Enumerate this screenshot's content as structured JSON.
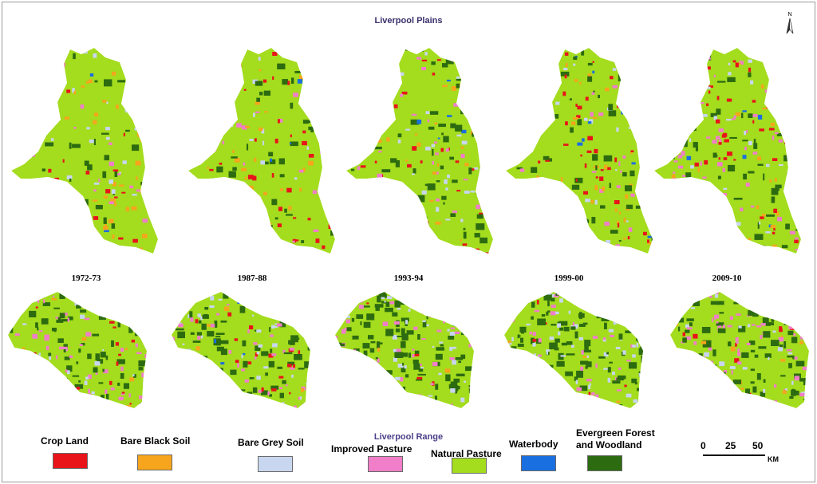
{
  "title": "Liverpool Plains",
  "north_label": "N",
  "years": [
    "1972-73",
    "1987-88",
    "1993-94",
    "1999-00",
    "2009-10"
  ],
  "range_title": "Liverpool Range",
  "legend": [
    {
      "label": "Crop Land",
      "color": "#e8141a"
    },
    {
      "label": "Bare Black Soil",
      "color": "#f6a51c"
    },
    {
      "label": "Bare Grey Soil",
      "color": "#c8d6f0"
    },
    {
      "label": "Improved Pasture",
      "color": "#f07ec8"
    },
    {
      "label": "Natural Pasture",
      "color": "#a4dc1e"
    },
    {
      "label": "Waterbody",
      "color": "#1a6fe0"
    },
    {
      "label": "Evergreen Forest and Woodland",
      "color": "#2d6b10"
    }
  ],
  "scale": {
    "ticks": [
      "0",
      "25",
      "50"
    ],
    "unit": "KM"
  }
}
